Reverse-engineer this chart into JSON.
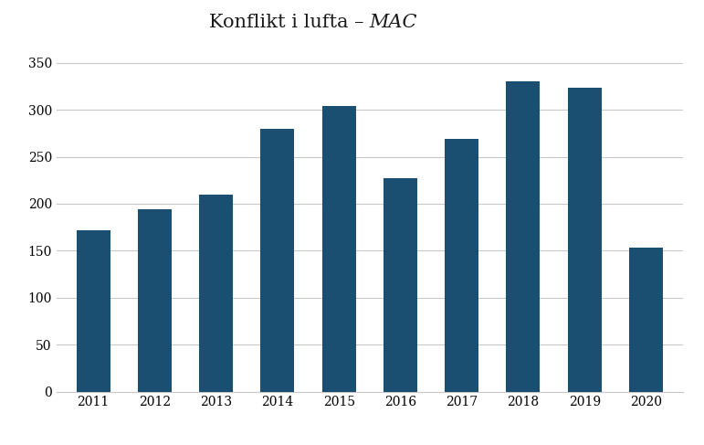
{
  "categories": [
    "2011",
    "2012",
    "2013",
    "2014",
    "2015",
    "2016",
    "2017",
    "2018",
    "2019",
    "2020"
  ],
  "values": [
    172,
    194,
    210,
    280,
    304,
    227,
    269,
    330,
    323,
    153
  ],
  "bar_color": "#1b4f72",
  "title_regular": "Konflikt i lufta – ",
  "title_italic": "MAC",
  "title_fontsize": 15,
  "ylim": [
    0,
    360
  ],
  "yticks": [
    0,
    50,
    100,
    150,
    200,
    250,
    300,
    350
  ],
  "grid_color": "#c8c8c8",
  "background_color": "#ffffff",
  "tick_label_fontsize": 10,
  "bar_width": 0.55,
  "title_color": "#1a1a1a",
  "tick_color": "#c06000"
}
